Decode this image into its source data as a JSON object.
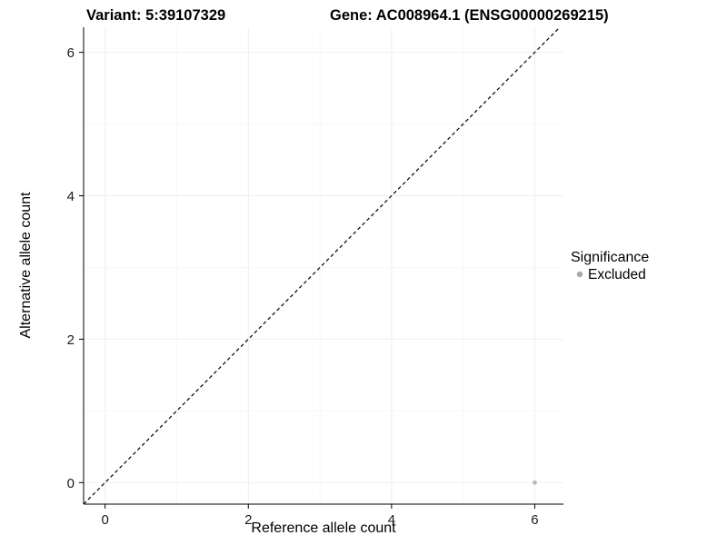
{
  "chart_data": {
    "type": "scatter",
    "title_left": "Variant: 5:39107329",
    "title_right": "Gene: AC008964.1 (ENSG00000269215)",
    "xlabel": "Reference allele count",
    "ylabel": "Alternative allele count",
    "x_ticks": [
      0,
      2,
      4,
      6
    ],
    "x_minor_ticks": [
      1,
      3,
      5
    ],
    "y_ticks": [
      0,
      2,
      4,
      6
    ],
    "y_minor_ticks": [
      1,
      3,
      5
    ],
    "xlim": [
      -0.3,
      6.4
    ],
    "ylim": [
      -0.3,
      6.35
    ],
    "grid": true,
    "identity_line": {
      "style": "dashed",
      "slope": 1,
      "intercept": 0
    },
    "series": [
      {
        "name": "Excluded",
        "color": "#b8b8b8",
        "points": [
          {
            "x": 6,
            "y": 0
          }
        ]
      }
    ],
    "legend": {
      "title": "Significance",
      "position": "right",
      "items": [
        {
          "label": "Excluded",
          "color": "#a8a8a8"
        }
      ]
    },
    "colors": {
      "axis": "#000000",
      "grid_major": "#efefef",
      "grid_minor": "#f7f7f7",
      "identity_line": "#000000",
      "background": "#ffffff"
    }
  }
}
